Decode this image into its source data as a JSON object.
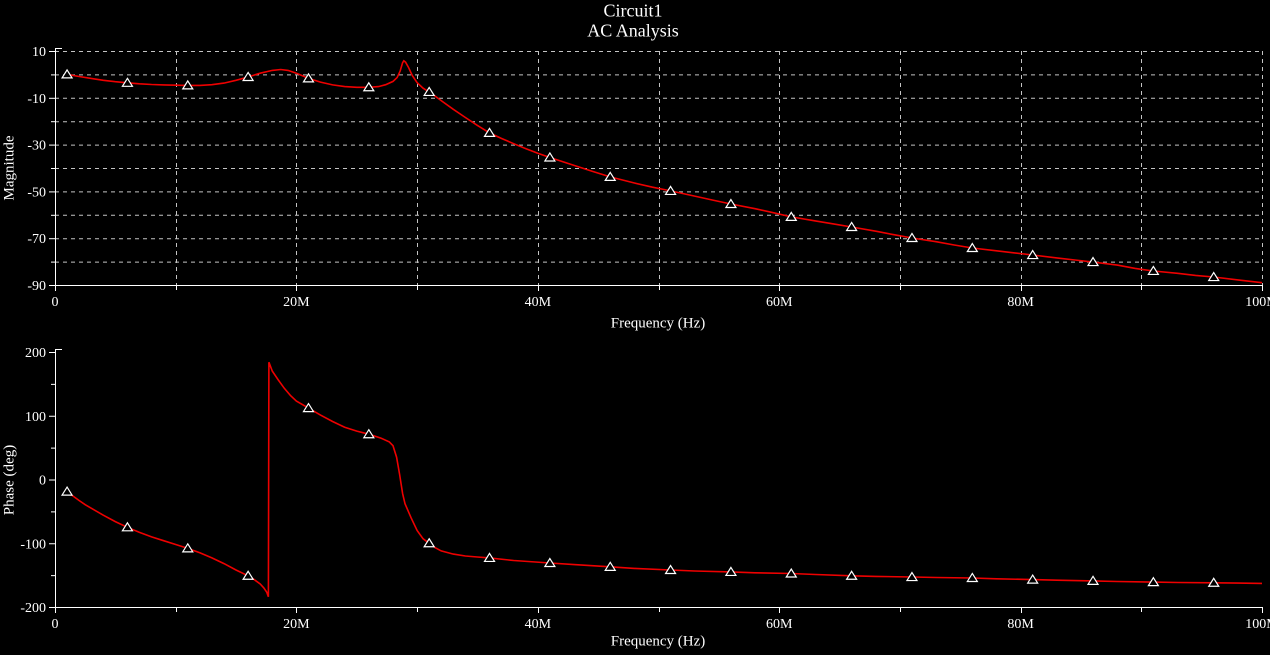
{
  "header": {
    "title": "Circuit1",
    "subtitle": "AC Analysis"
  },
  "colors": {
    "background": "#000000",
    "curve": "#ee0000",
    "axis": "#ffffff",
    "text": "#ffffff",
    "grid": "#c4c4c4",
    "marker_outline": "#ffffff",
    "marker_fill": "#000000"
  },
  "chart_data": [
    {
      "type": "line",
      "name": "magnitude",
      "ylabel": "Magnitude",
      "xlabel": "Frequency (Hz)",
      "x_unit": "MHz",
      "xlim": [
        0,
        100
      ],
      "ylim": [
        -90,
        10
      ],
      "xticks": [
        {
          "v": 0,
          "label": "0"
        },
        {
          "v": 20,
          "label": "20M"
        },
        {
          "v": 40,
          "label": "40M"
        },
        {
          "v": 60,
          "label": "60M"
        },
        {
          "v": 80,
          "label": "80M"
        },
        {
          "v": 100,
          "label": "100M"
        }
      ],
      "xminor": [
        10,
        30,
        50,
        70,
        90
      ],
      "yticks": [
        {
          "v": 10,
          "label": "10"
        },
        {
          "v": -10,
          "label": "-10"
        },
        {
          "v": -30,
          "label": "-30"
        },
        {
          "v": -50,
          "label": "-50"
        },
        {
          "v": -70,
          "label": "-70"
        },
        {
          "v": -90,
          "label": "-90"
        }
      ],
      "yminor": [
        0,
        -20,
        -40,
        -60,
        -80
      ],
      "grid": {
        "h": [
          10,
          0,
          -10,
          -20,
          -30,
          -40,
          -50,
          -60,
          -70,
          -80
        ],
        "v": [
          10,
          20,
          30,
          40,
          50,
          60,
          70,
          80,
          90,
          100
        ]
      },
      "curve": [
        [
          1,
          0
        ],
        [
          2,
          -0.9
        ],
        [
          3,
          -1.7
        ],
        [
          4,
          -2.5
        ],
        [
          5,
          -3.1
        ],
        [
          6,
          -3.6
        ],
        [
          7,
          -4.0
        ],
        [
          8,
          -4.3
        ],
        [
          9,
          -4.5
        ],
        [
          10,
          -4.6
        ],
        [
          11,
          -4.7
        ],
        [
          12,
          -4.7
        ],
        [
          13,
          -4.4
        ],
        [
          14,
          -3.7
        ],
        [
          15,
          -2.5
        ],
        [
          16,
          -1.1
        ],
        [
          17,
          0.5
        ],
        [
          18,
          1.7
        ],
        [
          18.7,
          2.1
        ],
        [
          19.3,
          1.7
        ],
        [
          20,
          0.5
        ],
        [
          21,
          -1.7
        ],
        [
          22,
          -3.3
        ],
        [
          23,
          -4.5
        ],
        [
          24,
          -5.2
        ],
        [
          25,
          -5.5
        ],
        [
          26,
          -5.5
        ],
        [
          26.8,
          -5.2
        ],
        [
          27.4,
          -4.4
        ],
        [
          28,
          -3.0
        ],
        [
          28.35,
          -1.3
        ],
        [
          28.6,
          1.5
        ],
        [
          28.8,
          5.0
        ],
        [
          28.9,
          5.8
        ],
        [
          29.05,
          5.2
        ],
        [
          29.3,
          2.8
        ],
        [
          29.6,
          -0.5
        ],
        [
          30,
          -3.5
        ],
        [
          30.5,
          -5.9
        ],
        [
          31,
          -7.5
        ],
        [
          31.5,
          -9.3
        ],
        [
          32,
          -11.2
        ],
        [
          33,
          -14.9
        ],
        [
          34,
          -18.4
        ],
        [
          35,
          -21.8
        ],
        [
          36,
          -25
        ],
        [
          37,
          -27.4
        ],
        [
          38,
          -29.6
        ],
        [
          39,
          -31.7
        ],
        [
          40,
          -33.7
        ],
        [
          41,
          -35.5
        ],
        [
          43,
          -38.9
        ],
        [
          44.5,
          -41.4
        ],
        [
          46,
          -43.8
        ],
        [
          48,
          -46.4
        ],
        [
          49.5,
          -48.2
        ],
        [
          51,
          -49.8
        ],
        [
          53,
          -52
        ],
        [
          54.5,
          -53.7
        ],
        [
          56,
          -55.4
        ],
        [
          58,
          -57.4
        ],
        [
          59.5,
          -59.1
        ],
        [
          61,
          -60.9
        ],
        [
          63,
          -62.6
        ],
        [
          64.5,
          -63.9
        ],
        [
          66,
          -65.2
        ],
        [
          68,
          -67
        ],
        [
          69.5,
          -68.5
        ],
        [
          71,
          -69.9
        ],
        [
          73,
          -71.5
        ],
        [
          74.5,
          -72.9
        ],
        [
          76,
          -74.2
        ],
        [
          78,
          -75.4
        ],
        [
          79.5,
          -76.3
        ],
        [
          81,
          -77.2
        ],
        [
          83,
          -78.4
        ],
        [
          84.5,
          -79.3
        ],
        [
          86,
          -80.2
        ],
        [
          88,
          -81.5
        ],
        [
          89.5,
          -82.9
        ],
        [
          91,
          -84.0
        ],
        [
          93,
          -85.0
        ],
        [
          94.5,
          -85.9
        ],
        [
          96,
          -86.6
        ],
        [
          98,
          -87.8
        ],
        [
          100,
          -89
        ]
      ],
      "markers": [
        [
          1,
          0
        ],
        [
          6,
          -3.6
        ],
        [
          11,
          -4.7
        ],
        [
          16,
          -1.1
        ],
        [
          21,
          -1.7
        ],
        [
          26,
          -5.5
        ],
        [
          31,
          -7.5
        ],
        [
          36,
          -25
        ],
        [
          41,
          -35.5
        ],
        [
          46,
          -43.8
        ],
        [
          51,
          -49.8
        ],
        [
          56,
          -55.4
        ],
        [
          61,
          -60.9
        ],
        [
          66,
          -65.2
        ],
        [
          71,
          -69.9
        ],
        [
          76,
          -74.2
        ],
        [
          81,
          -77.2
        ],
        [
          86,
          -80.2
        ],
        [
          91,
          -84.0
        ],
        [
          96,
          -86.6
        ]
      ]
    },
    {
      "type": "line",
      "name": "phase",
      "ylabel": "Phase (deg)",
      "xlabel": "Frequency (Hz)",
      "x_unit": "MHz",
      "xlim": [
        0,
        100
      ],
      "ylim": [
        -200,
        200
      ],
      "xticks": [
        {
          "v": 0,
          "label": "0"
        },
        {
          "v": 20,
          "label": "20M"
        },
        {
          "v": 40,
          "label": "40M"
        },
        {
          "v": 60,
          "label": "60M"
        },
        {
          "v": 80,
          "label": "80M"
        },
        {
          "v": 100,
          "label": "100M"
        }
      ],
      "xminor": [
        10,
        30,
        50,
        70,
        90
      ],
      "yticks": [
        {
          "v": 200,
          "label": "200"
        },
        {
          "v": 100,
          "label": "100"
        },
        {
          "v": 0,
          "label": "0"
        },
        {
          "v": -100,
          "label": "-100"
        },
        {
          "v": -200,
          "label": "-200"
        }
      ],
      "yminor": [
        150,
        50,
        -50,
        -150
      ],
      "grid": null,
      "curve": [
        [
          1,
          -19
        ],
        [
          1.5,
          -26
        ],
        [
          2,
          -33
        ],
        [
          2.5,
          -39.5
        ],
        [
          3,
          -45
        ],
        [
          4,
          -56
        ],
        [
          5,
          -66
        ],
        [
          6,
          -75
        ],
        [
          7,
          -83
        ],
        [
          8,
          -90
        ],
        [
          9,
          -96
        ],
        [
          10,
          -102
        ],
        [
          11,
          -108
        ],
        [
          12,
          -115
        ],
        [
          13,
          -123
        ],
        [
          14,
          -132
        ],
        [
          15,
          -142
        ],
        [
          16,
          -151
        ],
        [
          16.5,
          -157
        ],
        [
          17,
          -164
        ],
        [
          17.3,
          -170
        ],
        [
          17.55,
          -177
        ],
        [
          17.68,
          -184
        ],
        [
          17.72,
          184
        ],
        [
          18,
          170
        ],
        [
          18.5,
          156
        ],
        [
          19,
          143
        ],
        [
          19.5,
          132
        ],
        [
          20,
          123
        ],
        [
          21,
          112
        ],
        [
          22,
          101
        ],
        [
          23,
          91
        ],
        [
          24,
          82
        ],
        [
          25,
          76
        ],
        [
          26,
          71
        ],
        [
          27,
          65
        ],
        [
          27.7,
          59
        ],
        [
          28,
          53
        ],
        [
          28.3,
          35
        ],
        [
          28.55,
          8
        ],
        [
          28.8,
          -22
        ],
        [
          29,
          -38
        ],
        [
          29.5,
          -60
        ],
        [
          30,
          -80
        ],
        [
          30.5,
          -93
        ],
        [
          31,
          -100
        ],
        [
          31.5,
          -107
        ],
        [
          32,
          -112
        ],
        [
          33,
          -117
        ],
        [
          34,
          -120
        ],
        [
          35,
          -121.5
        ],
        [
          36,
          -123
        ],
        [
          38,
          -127
        ],
        [
          41,
          -131
        ],
        [
          43,
          -133.5
        ],
        [
          46,
          -137
        ],
        [
          48,
          -139.5
        ],
        [
          51,
          -142
        ],
        [
          53,
          -143.5
        ],
        [
          56,
          -145
        ],
        [
          58,
          -146.3
        ],
        [
          61,
          -147.5
        ],
        [
          63,
          -149
        ],
        [
          66,
          -151
        ],
        [
          68,
          -152
        ],
        [
          71,
          -153
        ],
        [
          73,
          -153.8
        ],
        [
          76,
          -154.5
        ],
        [
          78,
          -155.8
        ],
        [
          81,
          -157
        ],
        [
          83,
          -158
        ],
        [
          86,
          -159
        ],
        [
          88,
          -160
        ],
        [
          91,
          -161
        ],
        [
          93,
          -161.5
        ],
        [
          96,
          -162
        ],
        [
          98,
          -162.5
        ],
        [
          100,
          -163
        ]
      ],
      "markers": [
        [
          1,
          -19
        ],
        [
          6,
          -75
        ],
        [
          11,
          -108
        ],
        [
          16,
          -151
        ],
        [
          21,
          112
        ],
        [
          26,
          71
        ],
        [
          31,
          -100
        ],
        [
          36,
          -123
        ],
        [
          41,
          -131
        ],
        [
          46,
          -137
        ],
        [
          51,
          -142
        ],
        [
          56,
          -145
        ],
        [
          61,
          -147.5
        ],
        [
          66,
          -151
        ],
        [
          71,
          -153
        ],
        [
          76,
          -154.5
        ],
        [
          81,
          -157
        ],
        [
          86,
          -159
        ],
        [
          91,
          -161
        ],
        [
          96,
          -162
        ]
      ]
    }
  ]
}
